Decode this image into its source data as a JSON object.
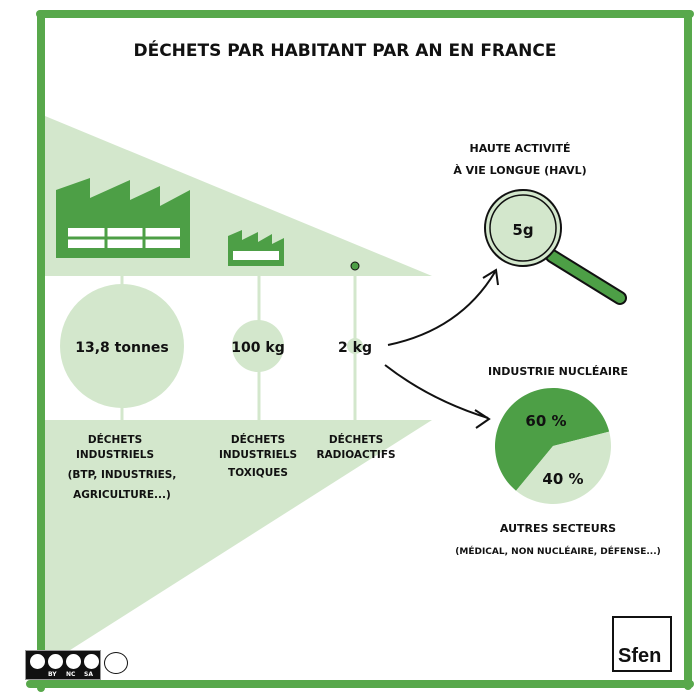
{
  "title": "DÉCHETS PAR HABITANT PAR AN EN FRANCE",
  "colors": {
    "dark_green": "#4d9f46",
    "light_green": "#d3e7cc",
    "frame_green": "#58a84b"
  },
  "categories": [
    {
      "amount": "13,8 tonnes",
      "label_lines": [
        "DÉCHETS",
        "INDUSTRIELS",
        "(BTP, INDUSTRIES,",
        "AGRICULTURE...)"
      ]
    },
    {
      "amount": "100 kg",
      "label_lines": [
        "DÉCHETS",
        "INDUSTRIELS",
        "TOXIQUES"
      ]
    },
    {
      "amount": "2 kg",
      "label_lines": [
        "DÉCHETS",
        "RADIOACTIFS"
      ]
    }
  ],
  "havl": {
    "title_lines": [
      "HAUTE ACTIVITÉ",
      "À VIE LONGUE (HAVL)"
    ],
    "amount": "5g"
  },
  "pie": {
    "title": "INDUSTRIE NUCLÉAIRE",
    "slices": [
      {
        "label": "60 %",
        "value": 60
      },
      {
        "label": "40 %",
        "value": 40
      }
    ],
    "other_title": "AUTRES SECTEURS",
    "other_detail": "(MÉDICAL, NON NUCLÉAIRE, DÉFENSE...)"
  },
  "footer": {
    "license": [
      "BY",
      "NC",
      "SA"
    ],
    "logo": "Sfen"
  }
}
